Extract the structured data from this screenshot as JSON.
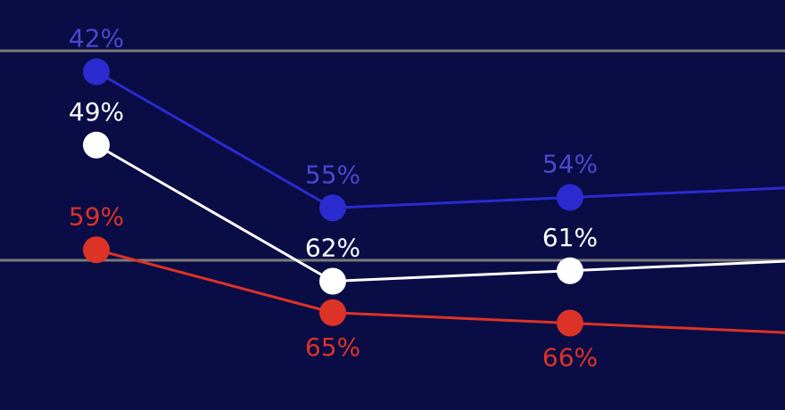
{
  "chart_data": {
    "type": "line",
    "x": [
      1,
      2,
      3,
      4
    ],
    "ylim": [
      35,
      75
    ],
    "reference_lines": [
      40,
      60
    ],
    "grid": false,
    "legend": "none",
    "colors": {
      "background": "#0a0c45",
      "reference_line": "#7a7a7a"
    },
    "series": [
      {
        "color": "#2b2bd0",
        "label_color": "#4a48cf",
        "label_position": "above",
        "values": [
          42,
          55,
          54,
          53
        ],
        "labels": [
          "42%",
          "55%",
          "54%",
          ""
        ]
      },
      {
        "color": "#ffffff",
        "label_color": "#ffffff",
        "label_position": "above",
        "values": [
          49,
          62,
          61,
          60
        ],
        "labels": [
          "49%",
          "62%",
          "61%",
          ""
        ]
      },
      {
        "color": "#dc3326",
        "label_color": "#dc3326",
        "label_position": "mixed",
        "values": [
          59,
          65,
          66,
          67
        ],
        "labels": [
          "59%",
          "65%",
          "66%",
          ""
        ]
      }
    ]
  }
}
